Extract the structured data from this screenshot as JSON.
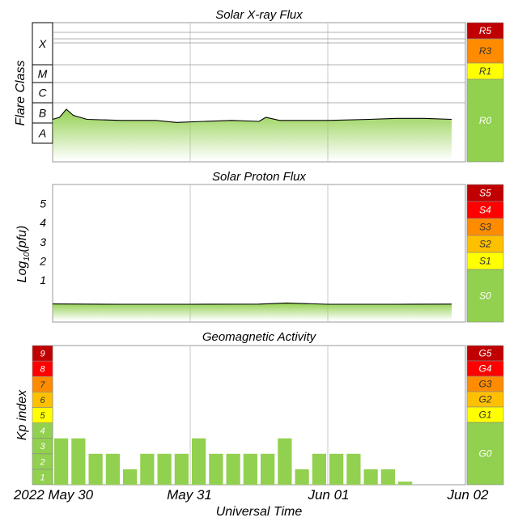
{
  "chart_data": [
    {
      "type": "area",
      "title": "Solar X-ray Flux",
      "ylabel": "Flare Class",
      "y_scale": "log",
      "y_classes": [
        "A",
        "B",
        "C",
        "M",
        "X"
      ],
      "x_ticks": [
        "2022 May 30",
        "May 31",
        "Jun 01",
        "Jun 02"
      ],
      "x_range_days": [
        0,
        3.2
      ],
      "values_class_level": [
        {
          "x": 0.0,
          "y": 2.9
        },
        {
          "x": 0.05,
          "y": 3.0
        },
        {
          "x": 0.1,
          "y": 3.4
        },
        {
          "x": 0.15,
          "y": 3.1
        },
        {
          "x": 0.25,
          "y": 2.9
        },
        {
          "x": 0.5,
          "y": 2.85
        },
        {
          "x": 0.75,
          "y": 2.85
        },
        {
          "x": 0.9,
          "y": 2.75
        },
        {
          "x": 1.1,
          "y": 2.8
        },
        {
          "x": 1.3,
          "y": 2.85
        },
        {
          "x": 1.5,
          "y": 2.8
        },
        {
          "x": 1.55,
          "y": 3.0
        },
        {
          "x": 1.65,
          "y": 2.85
        },
        {
          "x": 2.0,
          "y": 2.85
        },
        {
          "x": 2.3,
          "y": 2.9
        },
        {
          "x": 2.5,
          "y": 2.95
        },
        {
          "x": 2.7,
          "y": 2.95
        },
        {
          "x": 2.9,
          "y": 2.9
        }
      ],
      "scale_labels": [
        "R5",
        "R3",
        "R1",
        "R0"
      ],
      "scale_colors": [
        "#c00000",
        "#ff8c00",
        "#ffff00",
        "#92d050"
      ]
    },
    {
      "type": "area",
      "title": "Solar Proton Flux",
      "ylabel": "Log10(pfu)",
      "ylabel_main": "Log",
      "ylabel_sub": "10",
      "ylabel_tail": "(pfu)",
      "y_ticks": [
        "1",
        "2",
        "3",
        "4",
        "5"
      ],
      "ylim": [
        -1.2,
        6
      ],
      "values": [
        {
          "x": 0.0,
          "y": -0.25
        },
        {
          "x": 0.5,
          "y": -0.27
        },
        {
          "x": 1.0,
          "y": -0.27
        },
        {
          "x": 1.5,
          "y": -0.26
        },
        {
          "x": 1.7,
          "y": -0.2
        },
        {
          "x": 2.0,
          "y": -0.27
        },
        {
          "x": 2.5,
          "y": -0.27
        },
        {
          "x": 2.9,
          "y": -0.26
        }
      ],
      "scale_labels": [
        "S5",
        "S4",
        "S3",
        "S2",
        "S1",
        "S0"
      ],
      "scale_colors": [
        "#c00000",
        "#ff0000",
        "#ff8c00",
        "#ffc000",
        "#ffff00",
        "#92d050"
      ]
    },
    {
      "type": "bar",
      "title": "Geomagnetic Activity",
      "ylabel": "Kp index",
      "xlabel": "Universal Time",
      "y_ticks": [
        "1",
        "2",
        "3",
        "4",
        "5",
        "6",
        "7",
        "8",
        "9"
      ],
      "ylim": [
        0,
        9
      ],
      "kp_values": [
        3,
        3,
        2,
        2,
        1,
        2,
        2,
        2,
        3,
        2,
        2,
        2,
        2,
        3,
        1,
        2,
        2,
        2,
        1,
        1,
        0.2
      ],
      "bar_interval_hours": 3,
      "scale_labels": [
        "G5",
        "G4",
        "G3",
        "G2",
        "G1",
        "G0"
      ],
      "scale_colors": [
        "#c00000",
        "#ff0000",
        "#ff8c00",
        "#ffc000",
        "#ffff00",
        "#92d050"
      ]
    }
  ],
  "colors": {
    "fill_green": "#92d050",
    "line": "#000000",
    "grid": "#c8c8c8"
  }
}
